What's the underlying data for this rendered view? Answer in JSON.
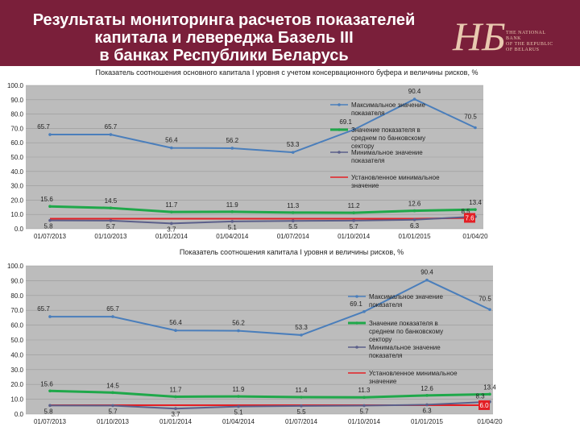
{
  "header": {
    "title": "Результаты мониторинга расчетов показателей\nкапитала и левереджа Базель III\nв банках Республики Беларусь",
    "logo_text": "THE NATIONAL\nBANK\nOF THE REPUBLIC\nOF BELARUS"
  },
  "chart_data": [
    {
      "type": "line",
      "title": "Показатель соотношения основного капитала I уровня с учетом консервационного буфера и величины рисков, %",
      "categories": [
        "01/07/2013",
        "01/10/2013",
        "01/01/2014",
        "01/04/2014",
        "01/07/2014",
        "01/10/2014",
        "01/01/2015",
        "01/04/20"
      ],
      "ylim": [
        0,
        100
      ],
      "yticks": [
        "0.0",
        "10.0",
        "20.0",
        "30.0",
        "40.0",
        "50.0",
        "60.0",
        "70.0",
        "80.0",
        "90.0",
        "100.0"
      ],
      "grid": true,
      "legend_position": "right",
      "series": [
        {
          "name": "Максимальное значение показателя",
          "color": "#4a7ebb",
          "values": [
            65.7,
            65.7,
            56.4,
            56.2,
            53.3,
            69.1,
            90.4,
            70.5
          ],
          "labels": [
            "65.7",
            "65.7",
            "56.4",
            "56.2",
            "53.3",
            "69.1",
            "90.4",
            "70.5"
          ]
        },
        {
          "name": "Значение показателя в среднем по банковскому сектору",
          "color": "#1fa84a",
          "values": [
            15.6,
            14.5,
            11.7,
            11.9,
            11.3,
            11.2,
            12.6,
            13.4
          ],
          "labels": [
            "15.6",
            "14.5",
            "11.7",
            "11.9",
            "11.3",
            "11.2",
            "12.6",
            "13.4"
          ]
        },
        {
          "name": "Минимальное значение показателя",
          "color": "#5b5f8a",
          "values": [
            5.8,
            5.7,
            3.7,
            5.1,
            5.5,
            5.7,
            6.3,
            8.5
          ],
          "labels": [
            "5.8",
            "5.7",
            "3.7",
            "5.1",
            "5.5",
            "5.7",
            "6.3",
            "8.5"
          ]
        },
        {
          "name": "Установленное минимальное значение",
          "color": "#e31e24",
          "values": [
            7,
            7,
            7,
            7,
            7,
            7,
            7,
            7.6
          ],
          "labels": [
            "",
            "",
            "",
            "",
            "",
            "",
            "",
            "7.6"
          ]
        }
      ]
    },
    {
      "type": "line",
      "title": "Показатель соотношения капитала I уровня и величины рисков, %",
      "categories": [
        "01/07/2013",
        "01/10/2013",
        "01/01/2014",
        "01/04/2014",
        "01/07/2014",
        "01/10/2014",
        "01/01/2015",
        "01/04/20"
      ],
      "ylim": [
        0,
        100
      ],
      "yticks": [
        "0.0",
        "10.0",
        "20.0",
        "30.0",
        "40.0",
        "50.0",
        "60.0",
        "70.0",
        "80.0",
        "90.0",
        "100.0"
      ],
      "grid": true,
      "legend_position": "right",
      "series": [
        {
          "name": "Максимальное значение показателя",
          "color": "#4a7ebb",
          "values": [
            65.7,
            65.7,
            56.4,
            56.2,
            53.3,
            69.1,
            90.4,
            70.5
          ],
          "labels": [
            "65.7",
            "65.7",
            "56.4",
            "56.2",
            "53.3",
            "69.1",
            "90.4",
            "70.5"
          ]
        },
        {
          "name": "Значение показателя в среднем по банковскому сектору",
          "color": "#1fa84a",
          "values": [
            15.6,
            14.5,
            11.7,
            11.9,
            11.4,
            11.3,
            12.6,
            13.4
          ],
          "labels": [
            "15.6",
            "14.5",
            "11.7",
            "11.9",
            "11.4",
            "11.3",
            "12.6",
            "13.4"
          ]
        },
        {
          "name": "Минимальное значение показателя",
          "color": "#5b5f8a",
          "values": [
            5.8,
            5.7,
            3.7,
            5.1,
            5.5,
            5.7,
            6.3,
            8.3
          ],
          "labels": [
            "5.8",
            "5.7",
            "3.7",
            "5.1",
            "5.5",
            "5.7",
            "6.3",
            "8.3"
          ]
        },
        {
          "name": "Установленное минимальное значение",
          "color": "#e31e24",
          "values": [
            6,
            6,
            6,
            6,
            6,
            6,
            6,
            6
          ],
          "labels": [
            "",
            "",
            "",
            "",
            "",
            "",
            "",
            "6.0"
          ]
        }
      ]
    }
  ]
}
